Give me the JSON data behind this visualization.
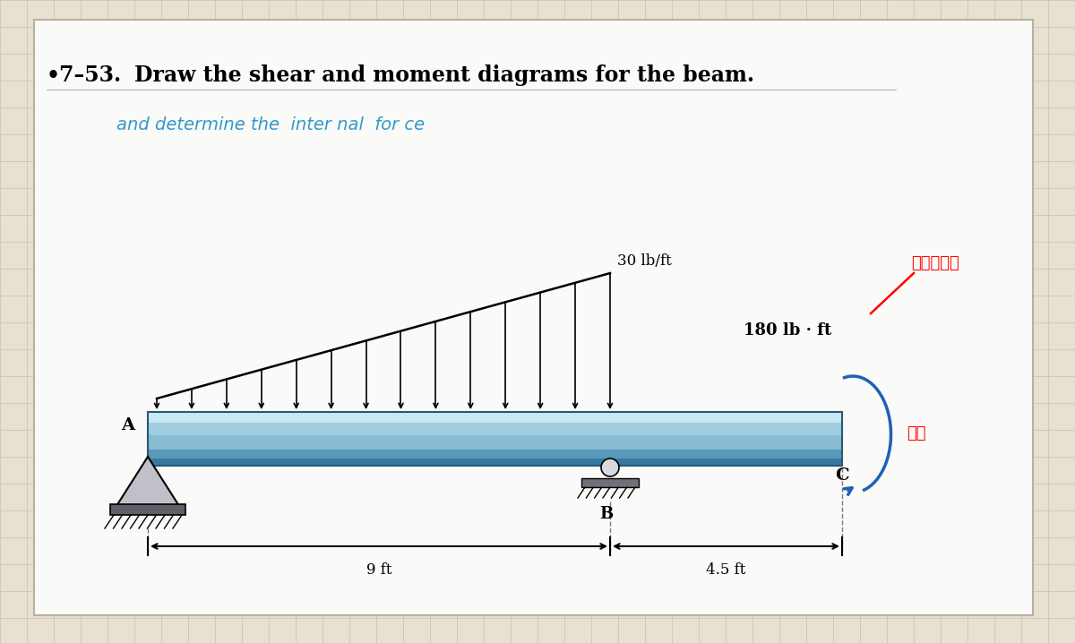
{
  "title_bold": "•7–53.",
  "title_space": "    ",
  "title_text": "Draw the shear and moment diagrams for the beam.",
  "subtitle_text": "and determine the  inter nal  for ce",
  "load_label": "30 lb/ft",
  "moment_label": "180 lb · ft",
  "handwritten_label1": "ปอนด์",
  "handwritten_label2": "ผม",
  "dim_label1": "9 ft",
  "dim_label2": "4.5 ft",
  "point_A": "A",
  "point_B": "B",
  "point_C": "C",
  "bg_color": "#e8e0d0",
  "paper_color": "#fafaf8",
  "grid_color": "#c8c0b0",
  "beam_top_color": "#b8dce8",
  "beam_mid_color": "#88c4dc",
  "beam_bot_color": "#4890b0",
  "beam_outline_color": "#2a5878"
}
